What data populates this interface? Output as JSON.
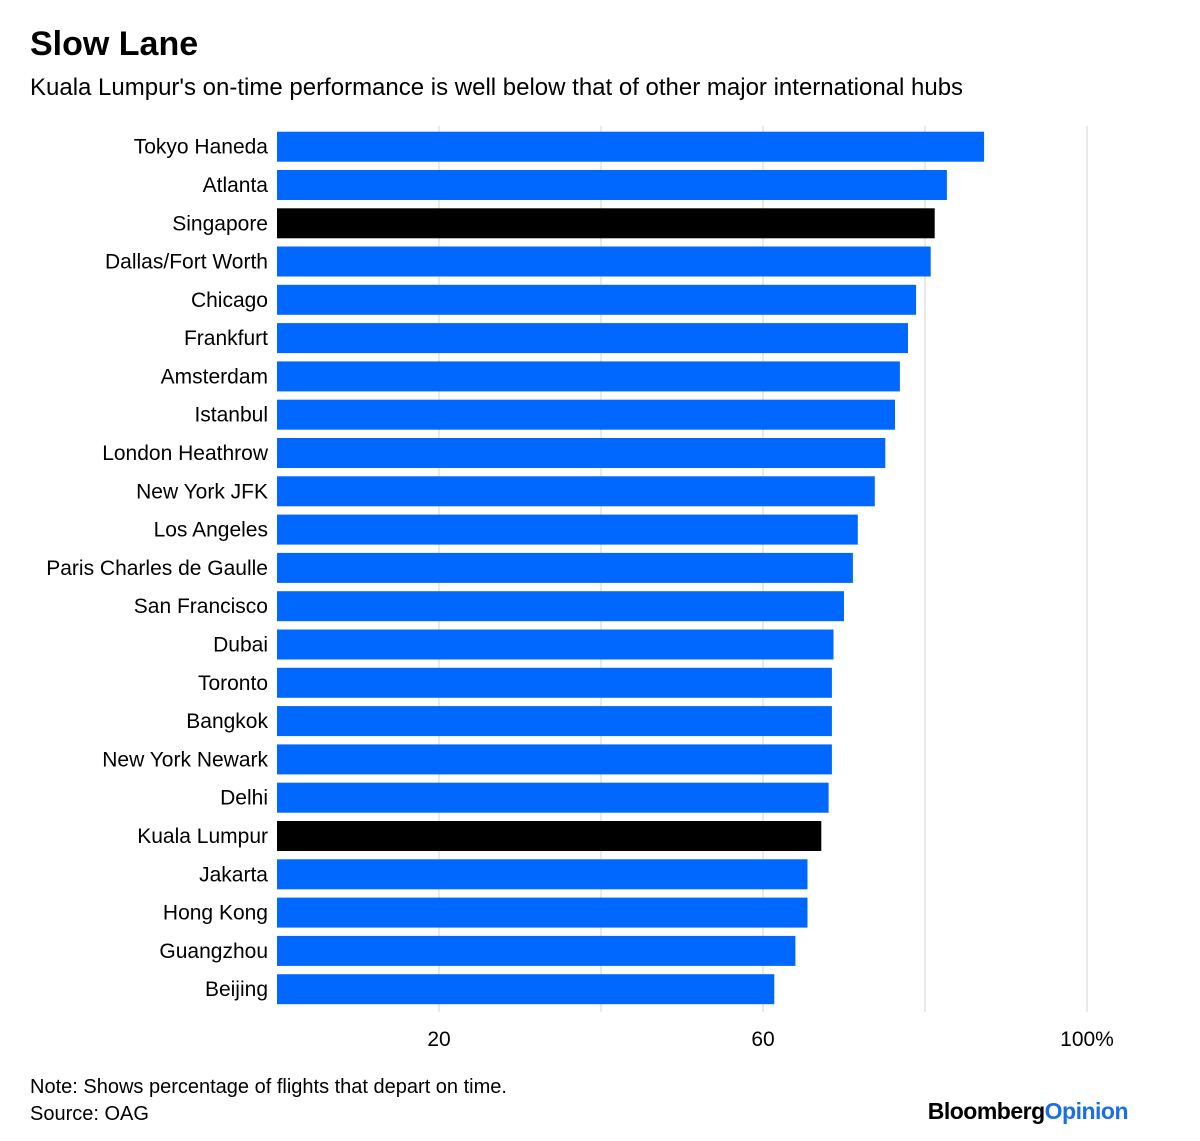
{
  "header": {
    "title": "Slow Lane",
    "subtitle": "Kuala Lumpur's on-time performance is well below that of other major international hubs"
  },
  "footer": {
    "note": "Note: Shows percentage of flights that depart on time.",
    "source": "Source: OAG",
    "brand_part1": "Bloomberg",
    "brand_part2": "Opinion"
  },
  "colors": {
    "bar_default": "#0068ff",
    "bar_highlight": "#000000",
    "grid": "#e3e3e3",
    "brand_accent": "#1a6fe8"
  },
  "chart_data": {
    "type": "bar",
    "orientation": "horizontal",
    "title": "Slow Lane",
    "subtitle": "Kuala Lumpur's on-time performance is well below that of other major international hubs",
    "xlabel": "",
    "ylabel": "",
    "xlim": [
      0,
      100
    ],
    "gridlines": [
      20,
      40,
      60,
      80,
      100
    ],
    "tick_labels": [
      {
        "value": 20,
        "label": "20"
      },
      {
        "value": 60,
        "label": "60"
      },
      {
        "value": 100,
        "label": "100%"
      }
    ],
    "categories": [
      "Tokyo Haneda",
      "Atlanta",
      "Singapore",
      "Dallas/Fort Worth",
      "Chicago",
      "Frankfurt",
      "Amsterdam",
      "Istanbul",
      "London Heathrow",
      "New York JFK",
      "Los Angeles",
      "Paris Charles de Gaulle",
      "San Francisco",
      "Dubai",
      "Toronto",
      "Bangkok",
      "New York Newark",
      "Delhi",
      "Kuala Lumpur",
      "Jakarta",
      "Hong Kong",
      "Guangzhou",
      "Beijing"
    ],
    "values": [
      87.3,
      82.7,
      81.2,
      80.7,
      78.9,
      77.9,
      76.9,
      76.3,
      75.1,
      73.8,
      71.7,
      71.1,
      70.0,
      68.7,
      68.5,
      68.5,
      68.5,
      68.1,
      67.2,
      65.5,
      65.5,
      64.0,
      61.4
    ],
    "highlight": [
      "Singapore",
      "Kuala Lumpur"
    ]
  }
}
